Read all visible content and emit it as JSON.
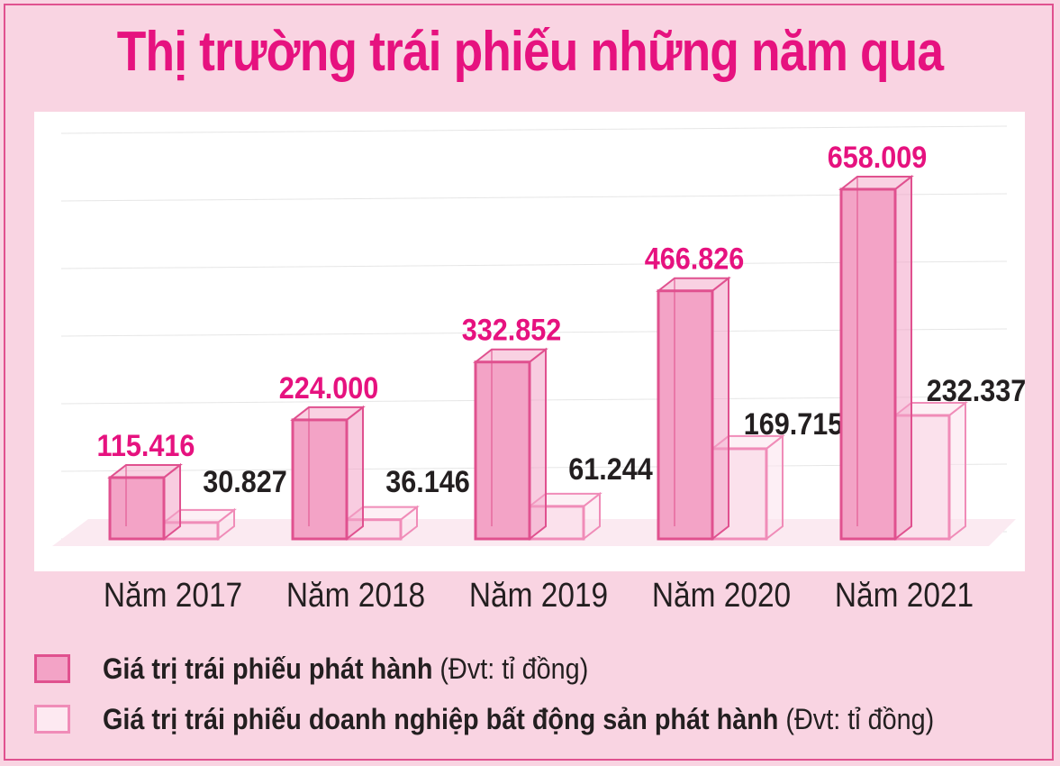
{
  "title": "Thị trường trái phiếu những năm qua",
  "colors": {
    "accent": "#e6127f",
    "bar_primary_fill": "#f3a3c6",
    "bar_primary_edge": "#e0518f",
    "bar_secondary_fill": "#fbe1ec",
    "bar_secondary_edge": "#f08cb8",
    "background": "#f9d4e2",
    "label_dark": "#231f20"
  },
  "chart_data": {
    "type": "bar",
    "title": "Thị trường trái phiếu những năm qua",
    "categories": [
      "Năm 2017",
      "Năm 2018",
      "Năm 2019",
      "Năm 2020",
      "Năm 2021"
    ],
    "series": [
      {
        "name": "Giá trị trái phiếu phát hành",
        "values": [
          115416,
          224000,
          332852,
          466826,
          658009
        ],
        "labels": [
          "115.416",
          "224.000",
          "332.852",
          "466.826",
          "658.009"
        ]
      },
      {
        "name": "Giá trị trái phiếu doanh nghiệp bất động sản phát hành",
        "values": [
          30827,
          36146,
          61244,
          169715,
          232337
        ],
        "labels": [
          "30.827",
          "36.146",
          "61.244",
          "169.715",
          "232.337"
        ]
      }
    ],
    "ylim": [
      0,
      700000
    ],
    "grid": true,
    "legend_position": "bottom"
  },
  "legend": [
    {
      "bold": "Giá trị trái phiếu phát hành",
      "unit": " (Đvt: tỉ đồng)"
    },
    {
      "bold": "Giá trị trái phiếu doanh nghiệp bất động sản phát hành",
      "unit": " (Đvt: tỉ đồng)"
    }
  ]
}
